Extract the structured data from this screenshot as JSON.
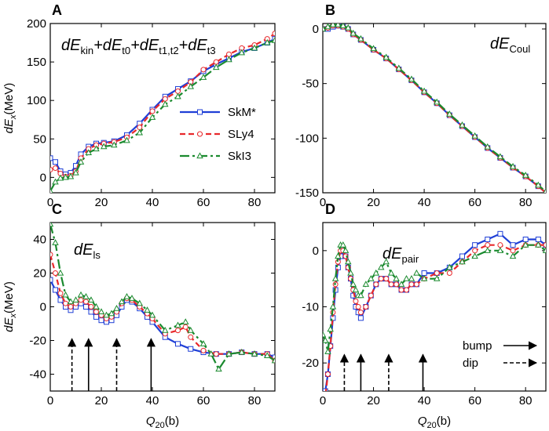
{
  "colors": {
    "skm": "#1f3fd6",
    "sly4": "#e8282b",
    "ski3": "#1a8a2e"
  },
  "chart_data": [
    {
      "type": "line",
      "panel_letter": "A",
      "annotation_parts": [
        {
          "text": "dE",
          "kind": "main"
        },
        {
          "text": "kin",
          "kind": "sub"
        },
        {
          "text": "+dE",
          "kind": "main"
        },
        {
          "text": "t0",
          "kind": "sub"
        },
        {
          "text": "+dE",
          "kind": "main"
        },
        {
          "text": "t1,t2",
          "kind": "sub"
        },
        {
          "text": "+dE",
          "kind": "main"
        },
        {
          "text": "t3",
          "kind": "sub"
        }
      ],
      "ylabel_main": "dE",
      "ylabel_sub": "x",
      "ylabel_unit": "(MeV)",
      "xlim": [
        0,
        88
      ],
      "ylim": [
        -20,
        200
      ],
      "yticks": [
        0,
        50,
        100,
        150,
        200
      ],
      "xticks": [
        0,
        20,
        40,
        60,
        80
      ],
      "legend": {
        "position": "center-right",
        "entries": [
          "SkM*",
          "SLy4",
          "SkI3"
        ]
      },
      "series": [
        {
          "name": "SkM*",
          "x": [
            0,
            2,
            4,
            6,
            8,
            10,
            12,
            15,
            18,
            21,
            25,
            30,
            35,
            40,
            45,
            50,
            55,
            60,
            65,
            70,
            75,
            80,
            85,
            88
          ],
          "values": [
            25,
            20,
            8,
            4,
            6,
            15,
            30,
            40,
            44,
            45,
            47,
            55,
            70,
            88,
            105,
            115,
            125,
            138,
            147,
            155,
            163,
            168,
            175,
            180
          ]
        },
        {
          "name": "SLy4",
          "x": [
            0,
            2,
            4,
            6,
            8,
            10,
            12,
            15,
            18,
            21,
            25,
            30,
            35,
            40,
            45,
            50,
            55,
            60,
            65,
            70,
            75,
            80,
            85,
            88
          ],
          "values": [
            10,
            12,
            5,
            1,
            2,
            8,
            25,
            37,
            42,
            44,
            46,
            52,
            65,
            86,
            102,
            112,
            124,
            140,
            150,
            160,
            168,
            172,
            180,
            187
          ]
        },
        {
          "name": "SkI3",
          "x": [
            0,
            2,
            4,
            6,
            8,
            10,
            12,
            15,
            18,
            21,
            25,
            30,
            35,
            40,
            45,
            50,
            55,
            60,
            65,
            70,
            75,
            80,
            85,
            88
          ],
          "values": [
            -18,
            -6,
            -1,
            0,
            1,
            6,
            20,
            32,
            37,
            40,
            42,
            48,
            58,
            78,
            95,
            105,
            118,
            130,
            143,
            153,
            162,
            168,
            175,
            178
          ]
        }
      ],
      "arrows": []
    },
    {
      "type": "line",
      "panel_letter": "B",
      "annotation_parts": [
        {
          "text": "dE",
          "kind": "main"
        },
        {
          "text": "Coul",
          "kind": "sub"
        }
      ],
      "ylabel_main": "",
      "ylabel_sub": "",
      "ylabel_unit": "",
      "xlim": [
        0,
        88
      ],
      "ylim": [
        -150,
        5
      ],
      "yticks": [
        -150,
        -100,
        -50,
        0
      ],
      "xticks": [
        0,
        20,
        40,
        60,
        80
      ],
      "series": [
        {
          "name": "SkM*",
          "x": [
            0,
            2,
            4,
            6,
            8,
            10,
            12,
            15,
            20,
            25,
            30,
            35,
            40,
            45,
            50,
            55,
            60,
            65,
            70,
            75,
            80,
            85,
            88
          ],
          "values": [
            0,
            0,
            2,
            3,
            2,
            0,
            -5,
            -10,
            -19,
            -27,
            -37,
            -47,
            -58,
            -68,
            -79,
            -89,
            -99,
            -109,
            -118,
            -127,
            -135,
            -144,
            -150
          ]
        },
        {
          "name": "SLy4",
          "x": [
            0,
            2,
            4,
            6,
            8,
            10,
            12,
            15,
            20,
            25,
            30,
            35,
            40,
            45,
            50,
            55,
            60,
            65,
            70,
            75,
            80,
            85,
            88
          ],
          "values": [
            0,
            1,
            3,
            3,
            2,
            0,
            -5,
            -10,
            -19,
            -27,
            -37,
            -47,
            -58,
            -68,
            -79,
            -89,
            -99,
            -109,
            -118,
            -127,
            -135,
            -144,
            -150
          ]
        },
        {
          "name": "SkI3",
          "x": [
            0,
            2,
            4,
            6,
            8,
            10,
            12,
            15,
            20,
            25,
            30,
            35,
            40,
            45,
            50,
            55,
            60,
            65,
            70,
            75,
            80,
            85,
            88
          ],
          "values": [
            0,
            2,
            4,
            4,
            3,
            1,
            -4,
            -9,
            -18,
            -26,
            -36,
            -46,
            -57,
            -67,
            -78,
            -88,
            -98,
            -108,
            -117,
            -126,
            -134,
            -143,
            -149
          ]
        }
      ],
      "arrows": []
    },
    {
      "type": "line",
      "panel_letter": "C",
      "annotation_parts": [
        {
          "text": "dE",
          "kind": "main"
        },
        {
          "text": "ls",
          "kind": "sub"
        }
      ],
      "ylabel_main": "dE",
      "ylabel_sub": "x",
      "ylabel_unit": "(MeV)",
      "xlabel_main": "Q",
      "xlabel_sub": "20",
      "xlabel_unit": "(b)",
      "xlim": [
        0,
        88
      ],
      "ylim": [
        -50,
        50
      ],
      "yticks": [
        -40,
        -20,
        0,
        20,
        40
      ],
      "xticks": [
        0,
        20,
        40,
        60,
        80
      ],
      "series": [
        {
          "name": "SkM*",
          "x": [
            0,
            2,
            4,
            6,
            8,
            10,
            12,
            14,
            16,
            18,
            20,
            22,
            24,
            26,
            28,
            30,
            32,
            35,
            38,
            40,
            45,
            50,
            55,
            60,
            65,
            70,
            75,
            80,
            85,
            88
          ],
          "values": [
            16,
            10,
            4,
            0,
            -2,
            0,
            2,
            0,
            -3,
            -6,
            -8,
            -9,
            -8,
            -5,
            0,
            4,
            3,
            -1,
            -6,
            -9,
            -18,
            -22,
            -25,
            -27,
            -28,
            -28,
            -27,
            -28,
            -28,
            -30
          ]
        },
        {
          "name": "SLy4",
          "x": [
            0,
            2,
            4,
            6,
            8,
            10,
            12,
            14,
            16,
            18,
            20,
            22,
            24,
            26,
            28,
            30,
            32,
            35,
            38,
            40,
            45,
            50,
            53,
            55,
            60,
            65,
            70,
            75,
            80,
            85,
            88
          ],
          "values": [
            31,
            20,
            8,
            2,
            0,
            2,
            4,
            3,
            0,
            -3,
            -5,
            -7,
            -6,
            -3,
            2,
            5,
            4,
            0,
            -4,
            -7,
            -16,
            -14,
            -12,
            -18,
            -26,
            -28,
            -28,
            -27,
            -28,
            -28,
            -32
          ]
        },
        {
          "name": "SkI3",
          "x": [
            0,
            2,
            4,
            6,
            8,
            10,
            12,
            14,
            16,
            18,
            20,
            22,
            24,
            26,
            28,
            30,
            32,
            35,
            38,
            40,
            45,
            50,
            53,
            55,
            60,
            63,
            66,
            70,
            75,
            80,
            85,
            88
          ],
          "values": [
            49,
            38,
            20,
            7,
            3,
            4,
            7,
            6,
            4,
            0,
            -3,
            -5,
            -4,
            -1,
            3,
            6,
            5,
            2,
            -2,
            -5,
            -14,
            -11,
            -9,
            -14,
            -22,
            -28,
            -37,
            -28,
            -27,
            -28,
            -29,
            -32
          ]
        }
      ],
      "arrows": [
        {
          "x": 8.5,
          "style": "dashed",
          "y_from": -50,
          "y_to": -19
        },
        {
          "x": 15,
          "style": "solid",
          "y_from": -50,
          "y_to": -19
        },
        {
          "x": 26,
          "style": "dashed",
          "y_from": -50,
          "y_to": -19
        },
        {
          "x": 39.5,
          "style": "solid",
          "y_from": -50,
          "y_to": -19
        }
      ]
    },
    {
      "type": "line",
      "panel_letter": "D",
      "annotation_parts": [
        {
          "text": "dE",
          "kind": "main"
        },
        {
          "text": "pair",
          "kind": "sub"
        }
      ],
      "ylabel_main": "",
      "ylabel_sub": "",
      "ylabel_unit": "",
      "xlabel_main": "Q",
      "xlabel_sub": "20",
      "xlabel_unit": "(b)",
      "xlim": [
        0,
        88
      ],
      "ylim": [
        -25,
        5
      ],
      "yticks": [
        -20,
        -10,
        0
      ],
      "xticks": [
        0,
        20,
        40,
        60,
        80
      ],
      "legend_arrows": [
        {
          "label": "bump",
          "style": "solid"
        },
        {
          "label": "dip",
          "style": "dashed"
        }
      ],
      "series": [
        {
          "name": "SkM*",
          "x": [
            0,
            1,
            2,
            3,
            4,
            5,
            6,
            7,
            8,
            9,
            10,
            11,
            12,
            13,
            14,
            15,
            17,
            19,
            21,
            23,
            25,
            27,
            29,
            31,
            33,
            35,
            37,
            40,
            45,
            50,
            55,
            60,
            65,
            70,
            75,
            80,
            85,
            88
          ],
          "values": [
            -26,
            -25,
            -22,
            -17,
            -12,
            -7,
            -3,
            -1,
            0,
            -1,
            -3,
            -5,
            -8,
            -10,
            -11,
            -12,
            -10,
            -8,
            -6,
            -5,
            -5,
            -6,
            -6,
            -7,
            -7,
            -6,
            -6,
            -4,
            -4,
            -3,
            -1,
            1,
            2,
            3,
            1,
            2,
            2,
            1
          ]
        },
        {
          "name": "SLy4",
          "x": [
            0,
            1,
            2,
            3,
            4,
            5,
            6,
            7,
            8,
            9,
            10,
            11,
            12,
            13,
            14,
            15,
            17,
            19,
            21,
            23,
            25,
            27,
            29,
            31,
            33,
            35,
            37,
            40,
            45,
            50,
            55,
            60,
            65,
            70,
            75,
            80,
            85,
            88
          ],
          "values": [
            -27,
            -26,
            -22,
            -17,
            -11,
            -6,
            -2,
            0,
            0,
            -1,
            -3,
            -5,
            -7,
            -9,
            -10,
            -11,
            -10,
            -8,
            -6,
            -5,
            -5,
            -6,
            -6,
            -7,
            -7,
            -6,
            -6,
            -5,
            -4,
            -4,
            -2,
            0,
            1,
            1,
            0,
            1,
            1,
            1
          ]
        },
        {
          "name": "SkI3",
          "x": [
            0,
            1,
            2,
            3,
            4,
            5,
            6,
            7,
            8,
            9,
            10,
            11,
            12,
            13,
            14,
            15,
            17,
            19,
            21,
            23,
            25,
            27,
            29,
            31,
            33,
            35,
            37,
            40,
            45,
            50,
            55,
            60,
            65,
            70,
            75,
            80,
            85,
            88
          ],
          "values": [
            -15,
            -16,
            -18,
            -14,
            -10,
            -5,
            -1,
            1,
            1,
            0,
            -2,
            -4,
            -6,
            -7,
            -8,
            -8,
            -6,
            -5,
            -4,
            -3,
            -2,
            -4,
            -5,
            -6,
            -5,
            -5,
            -4,
            -5,
            -5,
            -3,
            -2,
            -1,
            0,
            0,
            -1,
            1,
            1,
            0
          ]
        }
      ],
      "arrows": [
        {
          "x": 8.5,
          "style": "dashed",
          "y_from": -25,
          "y_to": -18.5
        },
        {
          "x": 15,
          "style": "solid",
          "y_from": -25,
          "y_to": -18.5
        },
        {
          "x": 26,
          "style": "dashed",
          "y_from": -25,
          "y_to": -18.5
        },
        {
          "x": 39.5,
          "style": "solid",
          "y_from": -25,
          "y_to": -18.5
        }
      ]
    }
  ]
}
